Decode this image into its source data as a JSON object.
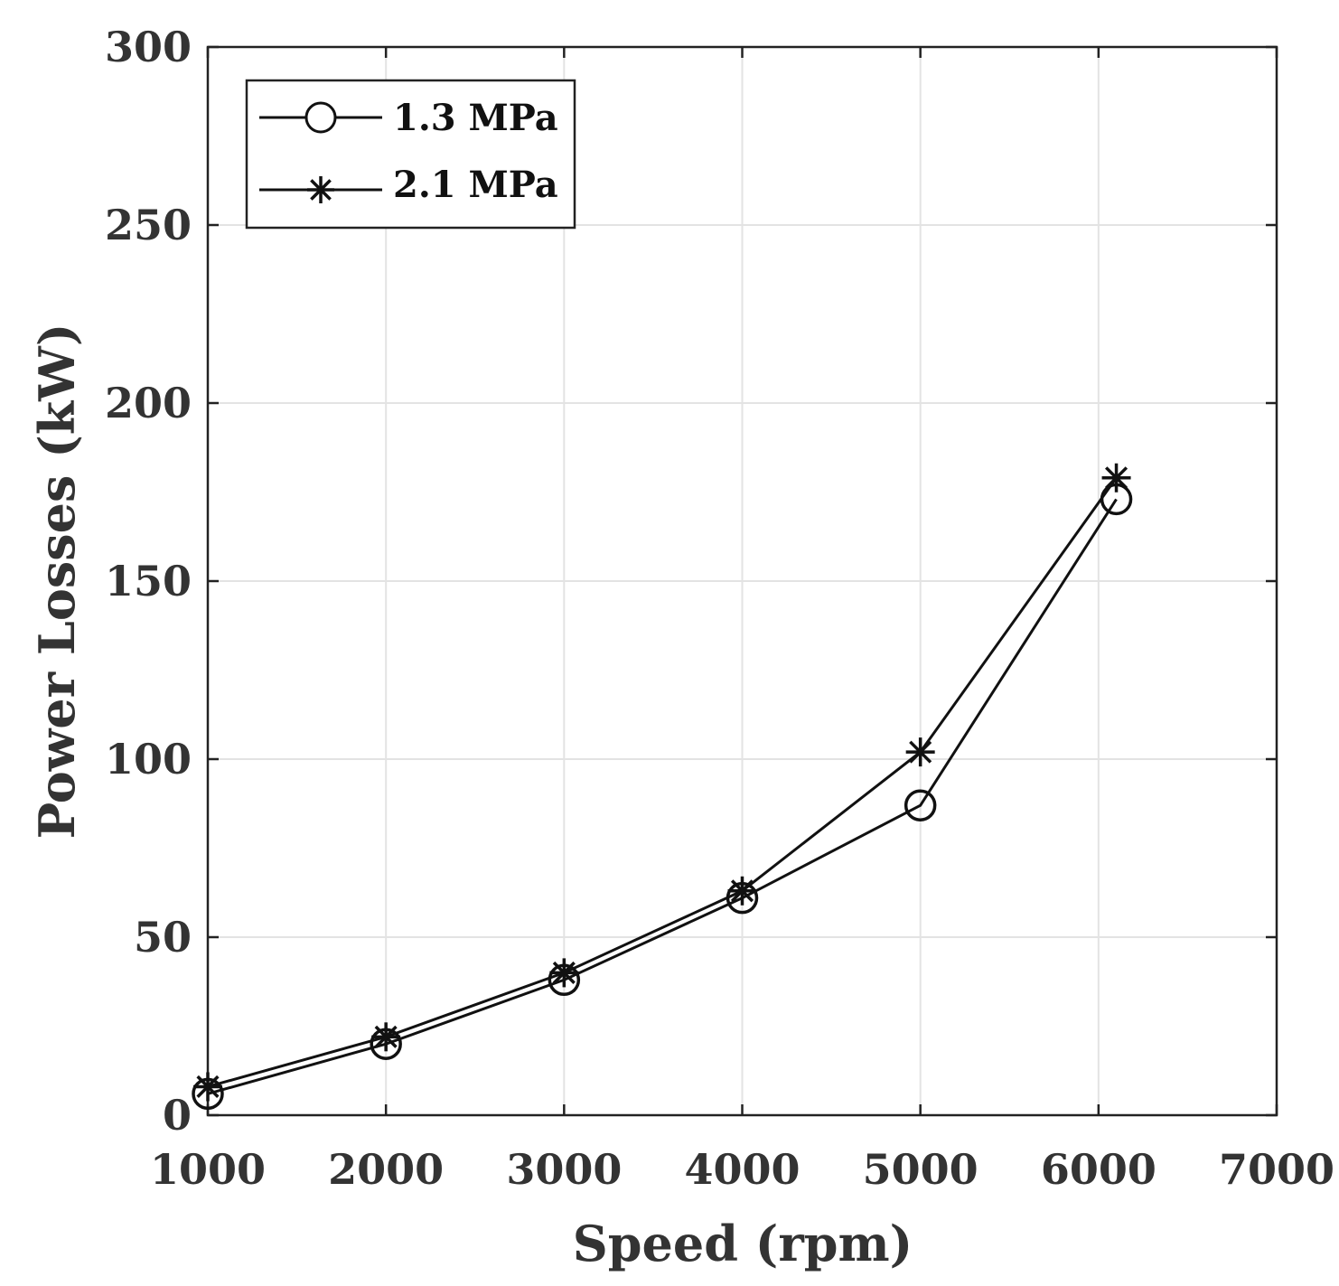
{
  "chart_data": {
    "type": "line",
    "title": "",
    "xlabel": "Speed (rpm)",
    "ylabel": "Power Losses (kW)",
    "xlim": [
      1000,
      7000
    ],
    "ylim": [
      0,
      300
    ],
    "xticks": [
      1000,
      2000,
      3000,
      4000,
      5000,
      6000,
      7000
    ],
    "yticks": [
      0,
      50,
      100,
      150,
      200,
      250,
      300
    ],
    "grid": true,
    "legend_position": "top-left",
    "series": [
      {
        "name": "1.3 MPa",
        "marker": "circle",
        "x": [
          1000,
          2000,
          3000,
          4000,
          5000,
          6100
        ],
        "y": [
          6,
          20,
          38,
          61,
          87,
          173
        ]
      },
      {
        "name": "2.1 MPa",
        "marker": "asterisk",
        "x": [
          1000,
          2000,
          3000,
          4000,
          5000,
          6100
        ],
        "y": [
          8,
          22,
          40,
          63,
          102,
          179
        ]
      }
    ],
    "colors": {
      "line": "#111111",
      "grid": "#e3e3e3",
      "axis": "#222222",
      "text": "#333333"
    }
  }
}
